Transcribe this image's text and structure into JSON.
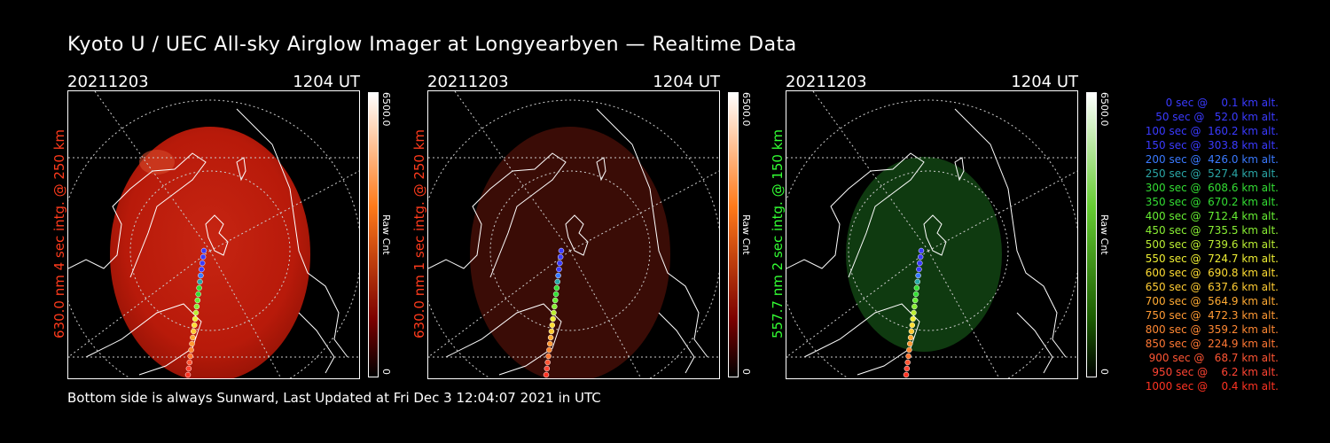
{
  "title": "Kyoto U / UEC All-sky Airglow Imager at Longyearbyen — Realtime Data",
  "footer": "Bottom side is always Sunward, Last Updated at Fri Dec  3 12:04:07 2021 in UTC",
  "panels": [
    {
      "date": "20211203",
      "time": "1204 UT",
      "side_label": "630.0 nm  4 sec intg. @ 250 km",
      "side_color": "#ff3b1c",
      "cbar_max": "6500.0",
      "cbar_label": "Raw Cnt",
      "cbar_min": "0",
      "cbar_top": "#ffffff",
      "cbar_bottom": "#7a0000",
      "image_color": "#c41e0d",
      "image_opacity": 1.0
    },
    {
      "date": "20211203",
      "time": "1204 UT",
      "side_label": "630.0 nm  1 sec intg. @ 250 km",
      "side_color": "#ff3b1c",
      "cbar_max": "6500.0",
      "cbar_label": "Raw Cnt",
      "cbar_min": "0",
      "cbar_top": "#ffffff",
      "cbar_bottom": "#7a0000",
      "image_color": "#3a0c06",
      "image_opacity": 1.0
    },
    {
      "date": "20211203",
      "time": "1204 UT",
      "side_label": "557.7 nm  2 sec intg. @ 150 km",
      "side_color": "#33ff33",
      "cbar_max": "6500.0",
      "cbar_label": "Raw Cnt",
      "cbar_min": "0",
      "cbar_top": "#ffffff",
      "cbar_bottom": "#1a5a00",
      "image_color": "#0f3a10",
      "image_opacity": 1.0
    }
  ],
  "legend": [
    {
      "text": "   0 sec @    0.1 km alt.",
      "color": "#3a3aff"
    },
    {
      "text": "  50 sec @   52.0 km alt.",
      "color": "#3a3aff"
    },
    {
      "text": " 100 sec @  160.2 km alt.",
      "color": "#3a3aff"
    },
    {
      "text": " 150 sec @  303.8 km alt.",
      "color": "#3a3aff"
    },
    {
      "text": " 200 sec @  426.0 km alt.",
      "color": "#3a7aff"
    },
    {
      "text": " 250 sec @  527.4 km alt.",
      "color": "#2aa6a6"
    },
    {
      "text": " 300 sec @  608.6 km alt.",
      "color": "#33dd33"
    },
    {
      "text": " 350 sec @  670.2 km alt.",
      "color": "#33dd33"
    },
    {
      "text": " 400 sec @  712.4 km alt.",
      "color": "#66ee33"
    },
    {
      "text": " 450 sec @  735.5 km alt.",
      "color": "#88ee33"
    },
    {
      "text": " 500 sec @  739.6 km alt.",
      "color": "#bbee33"
    },
    {
      "text": " 550 sec @  724.7 km alt.",
      "color": "#eeee33"
    },
    {
      "text": " 600 sec @  690.8 km alt.",
      "color": "#ffdd33"
    },
    {
      "text": " 650 sec @  637.6 km alt.",
      "color": "#ffcc33"
    },
    {
      "text": " 700 sec @  564.9 km alt.",
      "color": "#ffaa33"
    },
    {
      "text": " 750 sec @  472.3 km alt.",
      "color": "#ff9933"
    },
    {
      "text": " 800 sec @  359.2 km alt.",
      "color": "#ff8833"
    },
    {
      "text": " 850 sec @  224.9 km alt.",
      "color": "#ff7733"
    },
    {
      "text": " 900 sec @   68.7 km alt.",
      "color": "#ff5533"
    },
    {
      "text": " 950 sec @    6.2 km alt.",
      "color": "#ff4433"
    },
    {
      "text": "1000 sec @    0.4 km alt.",
      "color": "#ff3322"
    }
  ]
}
